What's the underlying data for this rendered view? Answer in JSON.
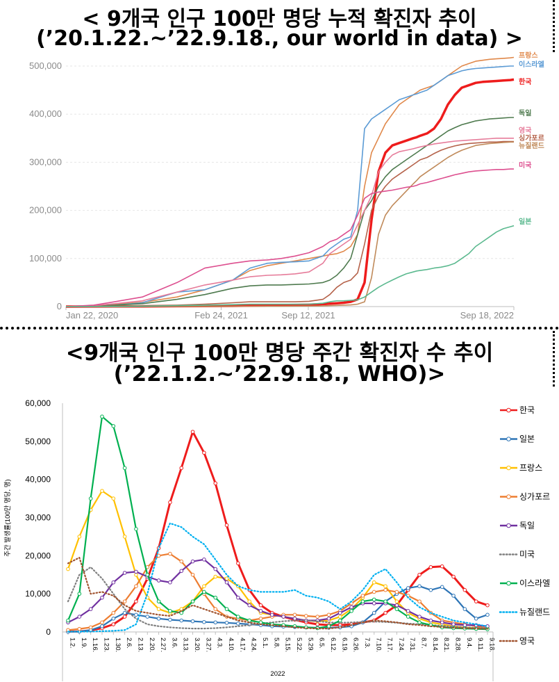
{
  "titles": {
    "top_line1": "< 9개국 인구 100만 명당 누적 확진자 추이",
    "top_line2": "(’20.1.22.~’22.9.18., our world in data) >",
    "bottom_line1": "<9개국 인구 100만 명당 주간 확진자 수 추이",
    "bottom_line2": "(’22.1.2.~’22.9.18., WHO)>"
  },
  "chart_data": [
    {
      "type": "line",
      "title": "9개국 인구 100만 명당 누적 확진자 추이",
      "x_ticks": [
        "Jan 22, 2020",
        "Feb 24, 2021",
        "Sep 12, 2021",
        "Sep 18, 2022"
      ],
      "y_ticks": [
        "0",
        "100,000",
        "200,000",
        "300,000",
        "400,000",
        "500,000"
      ],
      "ylim": [
        0,
        500000
      ],
      "x": [
        0,
        40,
        70,
        110,
        160,
        200,
        240,
        265,
        290,
        310,
        330,
        350,
        370,
        380,
        390,
        400,
        410,
        420,
        430,
        440,
        450,
        460,
        470,
        480,
        490,
        500,
        505,
        510,
        520,
        530,
        540,
        550,
        560,
        570,
        580,
        590,
        600,
        610,
        620,
        630,
        640,
        645
      ],
      "series": [
        {
          "name": "프랑스",
          "color": "#e0884a",
          "values": [
            0,
            2000,
            5000,
            9000,
            20000,
            35000,
            55000,
            75000,
            85000,
            90000,
            95000,
            100000,
            105000,
            108000,
            110000,
            115000,
            125000,
            150000,
            250000,
            320000,
            350000,
            380000,
            400000,
            420000,
            430000,
            440000,
            445000,
            450000,
            455000,
            460000,
            470000,
            480000,
            490000,
            500000,
            505000,
            510000,
            512000,
            514000,
            515000,
            516000,
            517000,
            518000
          ]
        },
        {
          "name": "이스라엘",
          "color": "#5b9bd5",
          "values": [
            0,
            1000,
            3000,
            8000,
            30000,
            35000,
            55000,
            80000,
            90000,
            92000,
            93000,
            95000,
            105000,
            120000,
            130000,
            140000,
            145000,
            200000,
            370000,
            390000,
            400000,
            410000,
            420000,
            430000,
            435000,
            440000,
            442000,
            445000,
            450000,
            460000,
            470000,
            480000,
            485000,
            490000,
            493000,
            495000,
            496000,
            497000,
            498000,
            499000,
            500000,
            500000
          ]
        },
        {
          "name": "한국",
          "color": "#ee1c1c",
          "values": [
            0,
            100,
            300,
            500,
            800,
            1000,
            1500,
            2000,
            2500,
            3000,
            3500,
            4000,
            5000,
            6000,
            7000,
            8000,
            10000,
            15000,
            50000,
            180000,
            280000,
            320000,
            335000,
            340000,
            345000,
            350000,
            352000,
            355000,
            360000,
            370000,
            390000,
            420000,
            440000,
            455000,
            460000,
            465000,
            467000,
            468000,
            469000,
            470000,
            471000,
            472000
          ]
        },
        {
          "name": "독일",
          "color": "#4e7a4e",
          "values": [
            0,
            1000,
            3000,
            6000,
            15000,
            25000,
            38000,
            43000,
            45000,
            45000,
            46000,
            47000,
            50000,
            55000,
            65000,
            80000,
            100000,
            150000,
            200000,
            220000,
            250000,
            270000,
            285000,
            295000,
            305000,
            315000,
            320000,
            325000,
            335000,
            345000,
            355000,
            365000,
            372000,
            378000,
            382000,
            386000,
            388000,
            390000,
            391000,
            392000,
            393000,
            393000
          ]
        },
        {
          "name": "영국",
          "color": "#e67c9a",
          "values": [
            0,
            2000,
            6000,
            12000,
            30000,
            45000,
            55000,
            62000,
            65000,
            66000,
            68000,
            72000,
            90000,
            110000,
            120000,
            130000,
            140000,
            170000,
            200000,
            230000,
            280000,
            300000,
            315000,
            322000,
            325000,
            328000,
            330000,
            332000,
            335000,
            338000,
            340000,
            342000,
            344000,
            345000,
            346000,
            347000,
            348000,
            349000,
            350000,
            350000,
            350000,
            350000
          ]
        },
        {
          "name": "싱가포르",
          "color": "#b5624a",
          "values": [
            0,
            500,
            1000,
            2000,
            3000,
            5000,
            8000,
            10000,
            10000,
            10000,
            10000,
            11000,
            15000,
            25000,
            40000,
            50000,
            55000,
            70000,
            130000,
            200000,
            230000,
            250000,
            265000,
            275000,
            285000,
            295000,
            300000,
            305000,
            310000,
            318000,
            325000,
            330000,
            334000,
            337000,
            339000,
            340000,
            341000,
            342000,
            342000,
            343000,
            343000,
            343000
          ]
        },
        {
          "name": "뉴질랜드",
          "color": "#c08a5a",
          "values": [
            0,
            100,
            200,
            300,
            400,
            500,
            600,
            700,
            800,
            900,
            1000,
            1200,
            1500,
            2000,
            2500,
            3000,
            3500,
            5000,
            10000,
            60000,
            150000,
            190000,
            210000,
            225000,
            240000,
            255000,
            262000,
            270000,
            280000,
            290000,
            300000,
            310000,
            318000,
            325000,
            330000,
            335000,
            337000,
            339000,
            340000,
            341000,
            342000,
            342000
          ]
        },
        {
          "name": "미국",
          "color": "#dd4f8f",
          "values": [
            0,
            3000,
            10000,
            20000,
            50000,
            80000,
            90000,
            95000,
            97000,
            100000,
            105000,
            112000,
            125000,
            135000,
            140000,
            150000,
            160000,
            190000,
            225000,
            235000,
            238000,
            240000,
            242000,
            245000,
            248000,
            250000,
            252000,
            255000,
            258000,
            262000,
            266000,
            270000,
            274000,
            277000,
            280000,
            282000,
            283000,
            284000,
            285000,
            285000,
            286000,
            286000
          ]
        },
        {
          "name": "일본",
          "color": "#5bb98f",
          "values": [
            0,
            100,
            300,
            600,
            2000,
            3000,
            4000,
            5000,
            5000,
            5000,
            5000,
            5000,
            7000,
            10000,
            12000,
            12000,
            13000,
            14000,
            20000,
            30000,
            40000,
            48000,
            55000,
            62000,
            68000,
            72000,
            74000,
            75000,
            77000,
            80000,
            82000,
            85000,
            90000,
            100000,
            110000,
            125000,
            135000,
            145000,
            155000,
            162000,
            166000,
            168000
          ]
        }
      ]
    },
    {
      "type": "line",
      "title": "9개국 인구 100만 명당 주간 확진자 수 추이",
      "xlabel": "2022",
      "ylabel": "주간 발생률(100만 명당, 명)",
      "ylim": [
        0,
        60000
      ],
      "y_ticks": [
        "0",
        "10,000",
        "20,000",
        "30,000",
        "40,000",
        "50,000",
        "60,000"
      ],
      "categories": [
        "1.2.",
        "1.9.",
        "1.16.",
        "1.23.",
        "1.30.",
        "2.6.",
        "2.13.",
        "2.20.",
        "2.27.",
        "3.6.",
        "3.13.",
        "3.20.",
        "3.27.",
        "4.3.",
        "4.10.",
        "4.17.",
        "4.24.",
        "5.1.",
        "5.8.",
        "5.15.",
        "5.22.",
        "5.29.",
        "6.5.",
        "6.12.",
        "6.19.",
        "6.26.",
        "7.3.",
        "7.10.",
        "7.17.",
        "7.24.",
        "7.31.",
        "8.7.",
        "8.14.",
        "8.21.",
        "8.28.",
        "9.4.",
        "9.11.",
        "9.18."
      ],
      "series": [
        {
          "name": "한국",
          "color": "#ee1c1c",
          "style": "solid",
          "values": [
            100,
            150,
            400,
            1000,
            2000,
            4000,
            8000,
            14000,
            22000,
            34000,
            43000,
            52500,
            47000,
            39000,
            28000,
            18000,
            11000,
            7000,
            5000,
            4000,
            3200,
            2500,
            2000,
            1800,
            1800,
            2000,
            2500,
            3000,
            5000,
            7000,
            11000,
            15000,
            17000,
            17200,
            14500,
            11000,
            8000,
            7000
          ]
        },
        {
          "name": "일본",
          "color": "#2e75b6",
          "style": "solid",
          "values": [
            50,
            100,
            500,
            1500,
            3500,
            5000,
            4500,
            4000,
            3500,
            3200,
            3000,
            2800,
            2600,
            2500,
            2400,
            2200,
            2000,
            1800,
            1500,
            1400,
            1300,
            1200,
            1100,
            1100,
            1200,
            1500,
            2500,
            5000,
            8000,
            10000,
            11500,
            12000,
            11000,
            11800,
            9500,
            6000,
            3500,
            4500
          ]
        },
        {
          "name": "프랑스",
          "color": "#ffc000",
          "style": "solid",
          "values": [
            16500,
            25000,
            32000,
            37000,
            35000,
            25000,
            15000,
            9000,
            6000,
            5000,
            6000,
            8000,
            12000,
            14500,
            14000,
            12000,
            8000,
            5000,
            4500,
            4000,
            3500,
            3000,
            2800,
            3000,
            4000,
            6000,
            9000,
            13000,
            12000,
            8000,
            5000,
            3500,
            2500,
            2000,
            1500,
            1200,
            1000,
            800
          ]
        },
        {
          "name": "싱가포르",
          "color": "#ed7d31",
          "style": "solid",
          "values": [
            500,
            800,
            1200,
            2500,
            5000,
            8000,
            12000,
            17000,
            20000,
            20500,
            18500,
            15000,
            10000,
            6000,
            4000,
            3500,
            3000,
            3500,
            4000,
            4500,
            4500,
            4200,
            4000,
            4500,
            5500,
            7500,
            9500,
            10500,
            11000,
            10500,
            9500,
            8000,
            5000,
            3000,
            2500,
            2000,
            1500,
            1000
          ]
        },
        {
          "name": "독일",
          "color": "#7030a0",
          "style": "solid",
          "values": [
            2500,
            4000,
            6000,
            9000,
            13000,
            15500,
            15800,
            14500,
            13500,
            13000,
            16000,
            18500,
            19000,
            16500,
            13000,
            9000,
            7000,
            5500,
            4500,
            4000,
            3500,
            3000,
            3000,
            3500,
            5000,
            6500,
            7500,
            7500,
            7500,
            7000,
            5500,
            4000,
            3000,
            2500,
            2000,
            1800,
            1800,
            1500
          ]
        },
        {
          "name": "미국",
          "color": "#7f7f7f",
          "style": "dotted",
          "values": [
            8000,
            15000,
            17000,
            14000,
            10000,
            6000,
            3500,
            2000,
            1500,
            1200,
            1000,
            900,
            900,
            1000,
            1200,
            1500,
            1800,
            2200,
            2500,
            2800,
            3000,
            3000,
            2800,
            2500,
            2400,
            2500,
            2600,
            2700,
            2600,
            2400,
            2200,
            2000,
            1800,
            1600,
            1400,
            1200,
            1100,
            1000
          ]
        },
        {
          "name": "이스라엘",
          "color": "#00b050",
          "style": "solid",
          "values": [
            3000,
            10000,
            35000,
            56500,
            54000,
            43000,
            27000,
            15000,
            8000,
            5500,
            5000,
            8000,
            10500,
            9000,
            6000,
            4000,
            3000,
            2500,
            2000,
            1800,
            1500,
            1200,
            1000,
            1500,
            3000,
            5500,
            8000,
            8500,
            8000,
            6000,
            4000,
            2500,
            1800,
            1200,
            1000,
            900,
            800,
            700
          ]
        },
        {
          "name": "뉴질랜드",
          "color": "#00b0f0",
          "style": "dotted",
          "values": [
            100,
            100,
            100,
            200,
            300,
            500,
            2000,
            10000,
            22000,
            28500,
            27500,
            25000,
            23000,
            19000,
            15000,
            12000,
            11000,
            10500,
            10500,
            10500,
            11000,
            9500,
            9000,
            8000,
            6000,
            8000,
            11000,
            15000,
            16500,
            13000,
            9000,
            6500,
            5000,
            4000,
            3000,
            2500,
            2000,
            1500
          ]
        },
        {
          "name": "영국",
          "color": "#a0522d",
          "style": "dotted",
          "values": [
            18000,
            19500,
            10000,
            10500,
            9500,
            7000,
            5500,
            5000,
            4500,
            4200,
            5500,
            7000,
            6000,
            5000,
            4000,
            3000,
            2500,
            2000,
            1800,
            1500,
            1200,
            1000,
            900,
            900,
            1200,
            1800,
            2500,
            3000,
            2800,
            2500,
            2000,
            1800,
            1500,
            1300,
            1100,
            1000,
            900,
            800
          ]
        }
      ]
    }
  ]
}
